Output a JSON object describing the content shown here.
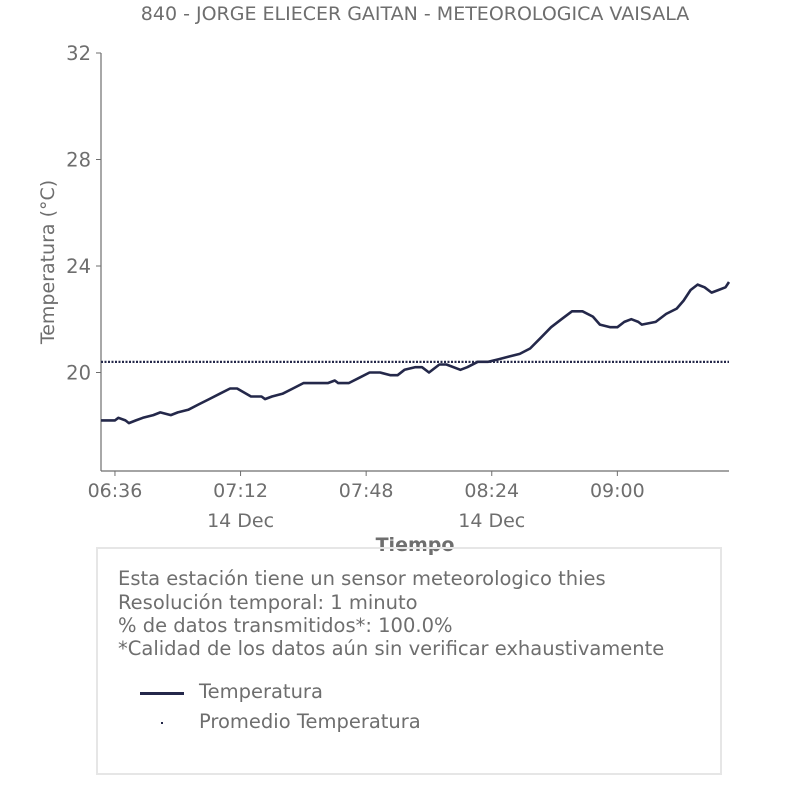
{
  "colors": {
    "series": "#24284a",
    "text": "#6e6e6e",
    "box_border": "#e6e6e6"
  },
  "chart_data": {
    "type": "line",
    "title": "840 - JORGE ELIECER GAITAN - METEOROLOGICA VAISALA",
    "xlabel": "Tiempo",
    "ylabel": "Temperatura (°C)",
    "x_range_minutes": [
      -4,
      176
    ],
    "x_origin_time": "06:36",
    "ylim": [
      16.3,
      32
    ],
    "yticks": [
      20,
      24,
      28,
      32
    ],
    "xticks": [
      {
        "minute": 0,
        "label": "06:36",
        "sublabel": ""
      },
      {
        "minute": 36,
        "label": "07:12",
        "sublabel": "14 Dec"
      },
      {
        "minute": 72,
        "label": "07:48",
        "sublabel": ""
      },
      {
        "minute": 108,
        "label": "08:24",
        "sublabel": "14 Dec"
      },
      {
        "minute": 144,
        "label": "09:00",
        "sublabel": ""
      }
    ],
    "grid": false,
    "series": [
      {
        "name": "Temperatura",
        "style": "solid",
        "minutes": [
          -4,
          0,
          1,
          3,
          4,
          6,
          8,
          11,
          13,
          16,
          18,
          21,
          24,
          27,
          30,
          33,
          35,
          39,
          42,
          43,
          45,
          48,
          51,
          54,
          57,
          61,
          63,
          64,
          67,
          70,
          73,
          76,
          79,
          81,
          83,
          86,
          88,
          90,
          93,
          95,
          99,
          101,
          104,
          107,
          110,
          113,
          116,
          119,
          122,
          125,
          128,
          131,
          134,
          137,
          139,
          142,
          144,
          146,
          148,
          150,
          151,
          155,
          158,
          161,
          163,
          165,
          167,
          169,
          171,
          173,
          175,
          176
        ],
        "values": [
          18.2,
          18.2,
          18.3,
          18.2,
          18.1,
          18.2,
          18.3,
          18.4,
          18.5,
          18.4,
          18.5,
          18.6,
          18.8,
          19.0,
          19.2,
          19.4,
          19.4,
          19.1,
          19.1,
          19.0,
          19.1,
          19.2,
          19.4,
          19.6,
          19.6,
          19.6,
          19.7,
          19.6,
          19.6,
          19.8,
          20.0,
          20.0,
          19.9,
          19.9,
          20.1,
          20.2,
          20.2,
          20.0,
          20.3,
          20.3,
          20.1,
          20.2,
          20.4,
          20.4,
          20.5,
          20.6,
          20.7,
          20.9,
          21.3,
          21.7,
          22.0,
          22.3,
          22.3,
          22.1,
          21.8,
          21.7,
          21.7,
          21.9,
          22.0,
          21.9,
          21.8,
          21.9,
          22.2,
          22.4,
          22.7,
          23.1,
          23.3,
          23.2,
          23.0,
          23.1,
          23.2,
          23.4
        ]
      },
      {
        "name": "Promedio Temperatura",
        "style": "dotted",
        "constant": 20.4
      }
    ],
    "legend": [
      "Temperatura",
      "Promedio Temperatura"
    ],
    "legend_placement": "below"
  },
  "info": {
    "lines": [
      "Esta estación tiene un sensor meteorologico thies",
      "Resolución temporal: 1 minuto",
      "% de datos transmitidos*: 100.0%",
      "*Calidad de los datos aún sin verificar exhaustivamente"
    ]
  }
}
